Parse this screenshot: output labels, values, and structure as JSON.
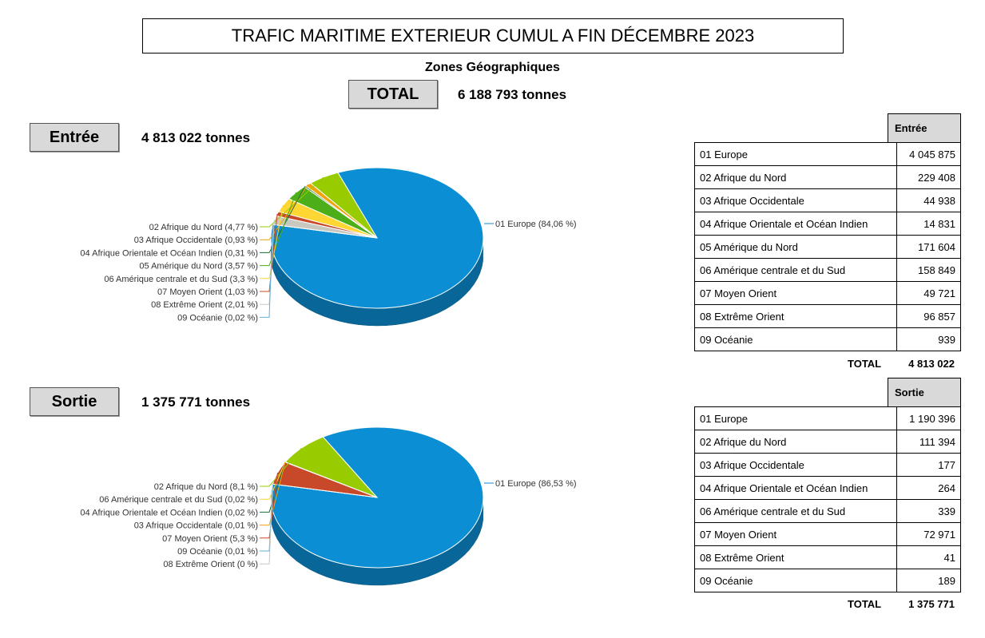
{
  "header": {
    "title": "TRAFIC MARITIME EXTERIEUR CUMUL A FIN DÉCEMBRE 2023",
    "subtitle": "Zones Géographiques",
    "total_label": "TOTAL",
    "total_value": "6 188 793  tonnes"
  },
  "entree": {
    "label": "Entrée",
    "value": "4 813 022  tonnes",
    "table": {
      "column_header": "Entrée",
      "rows": [
        {
          "zone": "01 Europe",
          "value": "4 045 875"
        },
        {
          "zone": "02 Afrique du Nord",
          "value": "229 408"
        },
        {
          "zone": "03 Afrique Occidentale",
          "value": "44 938"
        },
        {
          "zone": "04 Afrique Orientale et Océan Indien",
          "value": "14 831"
        },
        {
          "zone": "05 Amérique du Nord",
          "value": "171 604"
        },
        {
          "zone": "06 Amérique centrale et du Sud",
          "value": "158 849"
        },
        {
          "zone": "07 Moyen Orient",
          "value": "49 721"
        },
        {
          "zone": "08 Extrême Orient",
          "value": "96 857"
        },
        {
          "zone": "09 Océanie",
          "value": "939"
        }
      ],
      "total_label": "TOTAL",
      "total_value": "4 813 022"
    }
  },
  "sortie": {
    "label": "Sortie",
    "value": "1 375 771  tonnes",
    "table": {
      "column_header": "Sortie",
      "rows": [
        {
          "zone": "01 Europe",
          "value": "1 190 396"
        },
        {
          "zone": "02 Afrique du Nord",
          "value": "111 394"
        },
        {
          "zone": "03 Afrique Occidentale",
          "value": "177"
        },
        {
          "zone": "04 Afrique Orientale et Océan Indien",
          "value": "264"
        },
        {
          "zone": "06 Amérique centrale et du Sud",
          "value": "339"
        },
        {
          "zone": "07 Moyen Orient",
          "value": "72 971"
        },
        {
          "zone": "08 Extrême Orient",
          "value": "41"
        },
        {
          "zone": "09 Océanie",
          "value": "189"
        }
      ],
      "total_label": "TOTAL",
      "total_value": "1 375 771"
    }
  },
  "chart_data": [
    {
      "type": "pie",
      "title": "",
      "slices": [
        {
          "label": "01 Europe (84,06 %)",
          "value": 84.06,
          "color": "#0b8ed3",
          "side": "right"
        },
        {
          "label": "02 Afrique du Nord (4,77 %)",
          "value": 4.77,
          "color": "#99cc00",
          "side": "left"
        },
        {
          "label": "03 Afrique Occidentale (0,93 %)",
          "value": 0.93,
          "color": "#f0a30a",
          "side": "left"
        },
        {
          "label": "04 Afrique Orientale et Océan Indien (0,31 %)",
          "value": 0.31,
          "color": "#1b6f3b",
          "side": "left"
        },
        {
          "label": "05 Amérique du Nord (3,57 %)",
          "value": 3.57,
          "color": "#4caf1a",
          "side": "left"
        },
        {
          "label": "06 Amérique centrale et du Sud (3,3 %)",
          "value": 3.3,
          "color": "#ffd633",
          "side": "left"
        },
        {
          "label": "07 Moyen Orient (1,03 %)",
          "value": 1.03,
          "color": "#c8482a",
          "side": "left"
        },
        {
          "label": "08 Extrême Orient (2,01 %)",
          "value": 2.01,
          "color": "#c8c8c0",
          "side": "left"
        },
        {
          "label": "09 Océanie (0,02 %)",
          "value": 0.02,
          "color": "#5fb0de",
          "side": "left"
        }
      ]
    },
    {
      "type": "pie",
      "title": "",
      "slices": [
        {
          "label": "01 Europe (86,53 %)",
          "value": 86.53,
          "color": "#0b8ed3",
          "side": "right"
        },
        {
          "label": "02 Afrique du Nord (8,1 %)",
          "value": 8.1,
          "color": "#99cc00",
          "side": "left"
        },
        {
          "label": "06 Amérique centrale et du Sud (0,02 %)",
          "value": 0.02,
          "color": "#ffd633",
          "side": "left"
        },
        {
          "label": "04 Afrique Orientale et Océan Indien (0,02 %)",
          "value": 0.02,
          "color": "#1b6f3b",
          "side": "left"
        },
        {
          "label": "03 Afrique Occidentale (0,01 %)",
          "value": 0.01,
          "color": "#f0a30a",
          "side": "left"
        },
        {
          "label": "07 Moyen Orient (5,3 %)",
          "value": 5.3,
          "color": "#c8482a",
          "side": "left"
        },
        {
          "label": "09 Océanie (0,01 %)",
          "value": 0.01,
          "color": "#5fb0de",
          "side": "left"
        },
        {
          "label": "08 Extrême Orient (0 %)",
          "value": 0,
          "color": "#c8c8c0",
          "side": "left"
        }
      ]
    }
  ]
}
